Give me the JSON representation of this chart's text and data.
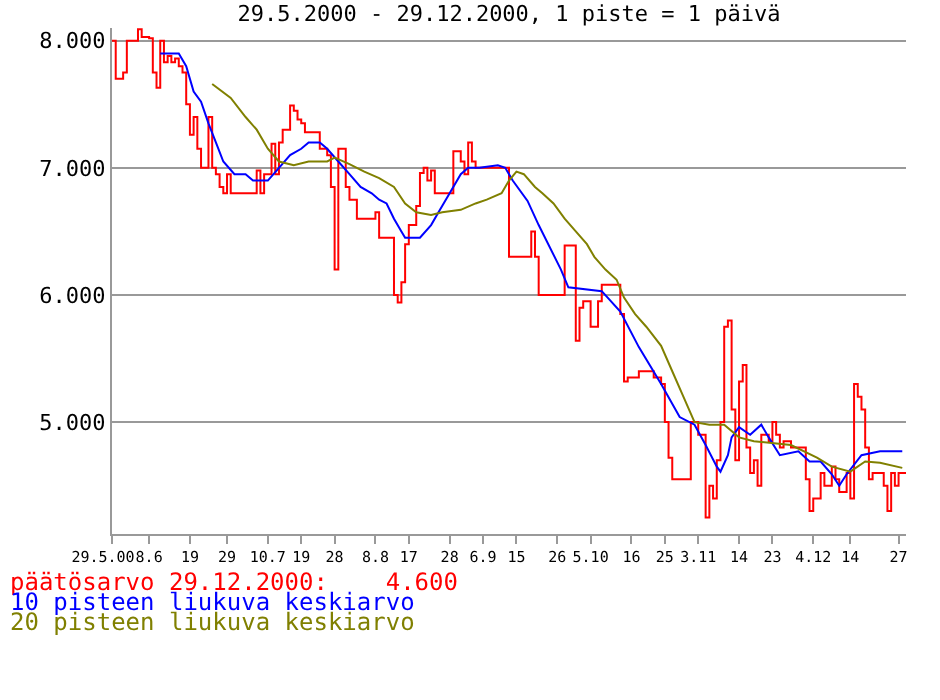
{
  "chart_data": {
    "type": "line",
    "title": "29.5.2000 - 29.12.2000, 1 piste = 1 päivä",
    "xlim": [
      "2000-05-29",
      "2000-12-29"
    ],
    "xticks": [
      {
        "value": "2000-05-29",
        "label": "29.5.00"
      },
      {
        "value": "2000-06-08",
        "label": "8.6"
      },
      {
        "value": "2000-06-19",
        "label": "19"
      },
      {
        "value": "2000-06-29",
        "label": "29"
      },
      {
        "value": "2000-07-10",
        "label": "10.7"
      },
      {
        "value": "2000-07-19",
        "label": "19"
      },
      {
        "value": "2000-07-28",
        "label": "28"
      },
      {
        "value": "2000-08-08",
        "label": "8.8"
      },
      {
        "value": "2000-08-17",
        "label": "17"
      },
      {
        "value": "2000-08-28",
        "label": "28"
      },
      {
        "value": "2000-09-06",
        "label": "6.9"
      },
      {
        "value": "2000-09-15",
        "label": "15"
      },
      {
        "value": "2000-09-26",
        "label": "26"
      },
      {
        "value": "2000-10-05",
        "label": "5.10"
      },
      {
        "value": "2000-10-16",
        "label": "16"
      },
      {
        "value": "2000-10-25",
        "label": "25"
      },
      {
        "value": "2000-11-03",
        "label": "3.11"
      },
      {
        "value": "2000-11-14",
        "label": "14"
      },
      {
        "value": "2000-11-23",
        "label": "23"
      },
      {
        "value": "2000-12-04",
        "label": "4.12"
      },
      {
        "value": "2000-12-14",
        "label": "14"
      },
      {
        "value": "2000-12-27",
        "label": "27"
      }
    ],
    "ylim": [
      4.12,
      8.1
    ],
    "yticks": [
      {
        "value": 5,
        "label": "5.000"
      },
      {
        "value": 6,
        "label": "6.000"
      },
      {
        "value": 7,
        "label": "7.000"
      },
      {
        "value": 8,
        "label": "8.000"
      }
    ],
    "grid": "y",
    "legend": "bottom",
    "marker": "none",
    "line_style": "solid",
    "series": [
      {
        "name": "päätösarvo 29.12.2000:    4.600",
        "type": "step",
        "color": "#ff0000",
        "x": [
          "2000-05-29",
          "2000-05-30",
          "2000-06-01",
          "2000-06-02",
          "2000-06-05",
          "2000-06-06",
          "2000-06-08",
          "2000-06-09",
          "2000-06-10",
          "2000-06-11",
          "2000-06-12",
          "2000-06-13",
          "2000-06-14",
          "2000-06-15",
          "2000-06-16",
          "2000-06-17",
          "2000-06-18",
          "2000-06-19",
          "2000-06-20",
          "2000-06-21",
          "2000-06-22",
          "2000-06-23",
          "2000-06-24",
          "2000-06-25",
          "2000-06-26",
          "2000-06-27",
          "2000-06-28",
          "2000-06-29",
          "2000-06-30",
          "2000-07-05",
          "2000-07-07",
          "2000-07-08",
          "2000-07-09",
          "2000-07-11",
          "2000-07-12",
          "2000-07-13",
          "2000-07-14",
          "2000-07-16",
          "2000-07-17",
          "2000-07-18",
          "2000-07-19",
          "2000-07-20",
          "2000-07-22",
          "2000-07-24",
          "2000-07-26",
          "2000-07-27",
          "2000-07-28",
          "2000-07-29",
          "2000-07-30",
          "2000-07-31",
          "2000-08-01",
          "2000-08-03",
          "2000-08-06",
          "2000-08-08",
          "2000-08-09",
          "2000-08-12",
          "2000-08-13",
          "2000-08-14",
          "2000-08-15",
          "2000-08-16",
          "2000-08-17",
          "2000-08-19",
          "2000-08-20",
          "2000-08-21",
          "2000-08-22",
          "2000-08-23",
          "2000-08-24",
          "2000-08-27",
          "2000-08-29",
          "2000-08-31",
          "2000-09-01",
          "2000-09-02",
          "2000-09-03",
          "2000-09-04",
          "2000-09-12",
          "2000-09-13",
          "2000-09-18",
          "2000-09-19",
          "2000-09-20",
          "2000-09-21",
          "2000-09-27",
          "2000-09-28",
          "2000-09-30",
          "2000-10-01",
          "2000-10-02",
          "2000-10-03",
          "2000-10-04",
          "2000-10-05",
          "2000-10-06",
          "2000-10-07",
          "2000-10-08",
          "2000-10-12",
          "2000-10-13",
          "2000-10-14",
          "2000-10-15",
          "2000-10-18",
          "2000-10-21",
          "2000-10-22",
          "2000-10-24",
          "2000-10-25",
          "2000-10-26",
          "2000-10-27",
          "2000-10-31",
          "2000-11-01",
          "2000-11-03",
          "2000-11-05",
          "2000-11-06",
          "2000-11-07",
          "2000-11-08",
          "2000-11-09",
          "2000-11-10",
          "2000-11-11",
          "2000-11-12",
          "2000-11-13",
          "2000-11-14",
          "2000-11-15",
          "2000-11-16",
          "2000-11-17",
          "2000-11-18",
          "2000-11-19",
          "2000-11-20",
          "2000-11-22",
          "2000-11-23",
          "2000-11-24",
          "2000-11-25",
          "2000-11-26",
          "2000-11-28",
          "2000-12-01",
          "2000-12-02",
          "2000-12-03",
          "2000-12-04",
          "2000-12-06",
          "2000-12-07",
          "2000-12-09",
          "2000-12-10",
          "2000-12-11",
          "2000-12-13",
          "2000-12-14",
          "2000-12-15",
          "2000-12-16",
          "2000-12-17",
          "2000-12-18",
          "2000-12-19",
          "2000-12-20",
          "2000-12-22",
          "2000-12-23",
          "2000-12-24",
          "2000-12-25",
          "2000-12-26",
          "2000-12-27",
          "2000-12-29"
        ],
        "values": [
          8.0,
          7.7,
          7.75,
          8.0,
          8.09,
          8.03,
          8.02,
          7.75,
          7.63,
          8.0,
          7.83,
          7.88,
          7.83,
          7.86,
          7.8,
          7.75,
          7.5,
          7.26,
          7.4,
          7.15,
          7.0,
          7.0,
          7.4,
          7.0,
          6.95,
          6.85,
          6.8,
          6.95,
          6.8,
          6.8,
          6.98,
          6.8,
          6.95,
          7.19,
          6.95,
          7.2,
          7.3,
          7.49,
          7.45,
          7.38,
          7.35,
          7.28,
          7.28,
          7.15,
          7.1,
          6.85,
          6.2,
          7.15,
          7.15,
          6.85,
          6.75,
          6.6,
          6.6,
          6.65,
          6.45,
          6.45,
          6.0,
          5.94,
          6.1,
          6.4,
          6.55,
          6.7,
          6.96,
          7.0,
          6.9,
          6.98,
          6.8,
          6.8,
          7.13,
          7.05,
          6.95,
          7.2,
          7.05,
          7.0,
          7.0,
          6.3,
          6.3,
          6.5,
          6.3,
          6.0,
          6.0,
          6.39,
          6.39,
          5.64,
          5.9,
          5.95,
          5.95,
          5.75,
          5.75,
          5.95,
          6.08,
          6.08,
          5.85,
          5.32,
          5.35,
          5.4,
          5.4,
          5.35,
          5.3,
          5.0,
          4.72,
          4.55,
          4.55,
          5.0,
          4.9,
          4.25,
          4.5,
          4.4,
          4.7,
          5.0,
          5.75,
          5.8,
          5.1,
          4.7,
          5.32,
          5.45,
          4.8,
          4.6,
          4.7,
          4.5,
          4.9,
          4.85,
          5.0,
          4.9,
          4.8,
          4.85,
          4.8,
          4.8,
          4.55,
          4.3,
          4.4,
          4.6,
          4.5,
          4.65,
          4.55,
          4.45,
          4.6,
          4.4,
          5.3,
          5.2,
          5.1,
          4.8,
          4.55,
          4.6,
          4.6,
          4.5,
          4.3,
          4.6,
          4.5,
          4.6,
          4.6
        ]
      },
      {
        "name": "10 pisteen liukuva keskiarvo",
        "color": "#0000ff",
        "x": [
          "2000-06-11",
          "2000-06-16",
          "2000-06-18",
          "2000-06-20",
          "2000-06-22",
          "2000-06-24",
          "2000-06-26",
          "2000-06-28",
          "2000-07-01",
          "2000-07-04",
          "2000-07-06",
          "2000-07-10",
          "2000-07-13",
          "2000-07-16",
          "2000-07-19",
          "2000-07-21",
          "2000-07-24",
          "2000-07-26",
          "2000-07-29",
          "2000-08-01",
          "2000-08-04",
          "2000-08-07",
          "2000-08-09",
          "2000-08-11",
          "2000-08-13",
          "2000-08-15",
          "2000-08-16",
          "2000-08-20",
          "2000-08-23",
          "2000-08-25",
          "2000-08-28",
          "2000-08-31",
          "2000-09-02",
          "2000-09-05",
          "2000-09-10",
          "2000-09-12",
          "2000-09-14",
          "2000-09-18",
          "2000-09-21",
          "2000-09-27",
          "2000-09-29",
          "2000-10-08",
          "2000-10-13",
          "2000-10-18",
          "2000-10-24",
          "2000-10-29",
          "2000-11-02",
          "2000-11-05",
          "2000-11-08",
          "2000-11-09",
          "2000-11-11",
          "2000-11-12",
          "2000-11-14",
          "2000-11-17",
          "2000-11-20",
          "2000-11-22",
          "2000-11-25",
          "2000-11-30",
          "2000-12-03",
          "2000-12-06",
          "2000-12-09",
          "2000-12-11",
          "2000-12-13",
          "2000-12-17",
          "2000-12-22",
          "2000-12-28"
        ],
        "values": [
          7.9,
          7.9,
          7.8,
          7.6,
          7.52,
          7.35,
          7.2,
          7.05,
          6.95,
          6.95,
          6.9,
          6.9,
          7.0,
          7.1,
          7.15,
          7.2,
          7.2,
          7.15,
          7.05,
          6.95,
          6.85,
          6.8,
          6.75,
          6.72,
          6.6,
          6.5,
          6.45,
          6.45,
          6.55,
          6.65,
          6.8,
          6.95,
          7.0,
          7.0,
          7.02,
          7.0,
          6.9,
          6.74,
          6.55,
          6.2,
          6.06,
          6.03,
          5.87,
          5.59,
          5.3,
          5.04,
          4.98,
          4.82,
          4.65,
          4.61,
          4.74,
          4.88,
          4.96,
          4.9,
          4.98,
          4.88,
          4.74,
          4.77,
          4.69,
          4.69,
          4.59,
          4.5,
          4.59,
          4.74,
          4.77,
          4.77
        ]
      },
      {
        "name": "20 pisteen liukuva keskiarvo",
        "color": "#808000",
        "x": [
          "2000-06-25",
          "2000-06-30",
          "2000-07-04",
          "2000-07-07",
          "2000-07-10",
          "2000-07-13",
          "2000-07-17",
          "2000-07-21",
          "2000-07-26",
          "2000-07-28",
          "2000-08-01",
          "2000-08-05",
          "2000-08-09",
          "2000-08-13",
          "2000-08-16",
          "2000-08-19",
          "2000-08-23",
          "2000-08-26",
          "2000-08-31",
          "2000-09-04",
          "2000-09-07",
          "2000-09-11",
          "2000-09-13",
          "2000-09-15",
          "2000-09-17",
          "2000-09-20",
          "2000-09-22",
          "2000-09-25",
          "2000-09-28",
          "2000-10-01",
          "2000-10-04",
          "2000-10-06",
          "2000-10-09",
          "2000-10-12",
          "2000-10-14",
          "2000-10-17",
          "2000-10-20",
          "2000-10-24",
          "2000-10-27",
          "2000-10-30",
          "2000-11-02",
          "2000-11-06",
          "2000-11-10",
          "2000-11-14",
          "2000-11-18",
          "2000-11-28",
          "2000-12-05",
          "2000-12-09",
          "2000-12-14",
          "2000-12-18",
          "2000-12-22",
          "2000-12-28"
        ],
        "values": [
          7.66,
          7.55,
          7.4,
          7.3,
          7.15,
          7.05,
          7.02,
          7.05,
          7.05,
          7.08,
          7.03,
          6.97,
          6.92,
          6.85,
          6.72,
          6.65,
          6.63,
          6.65,
          6.67,
          6.72,
          6.75,
          6.8,
          6.9,
          6.97,
          6.95,
          6.85,
          6.8,
          6.72,
          6.6,
          6.5,
          6.4,
          6.3,
          6.2,
          6.12,
          5.98,
          5.85,
          5.75,
          5.6,
          5.4,
          5.2,
          5.0,
          4.98,
          4.98,
          4.88,
          4.85,
          4.82,
          4.72,
          4.65,
          4.61,
          4.69,
          4.68,
          4.64
        ]
      }
    ]
  }
}
